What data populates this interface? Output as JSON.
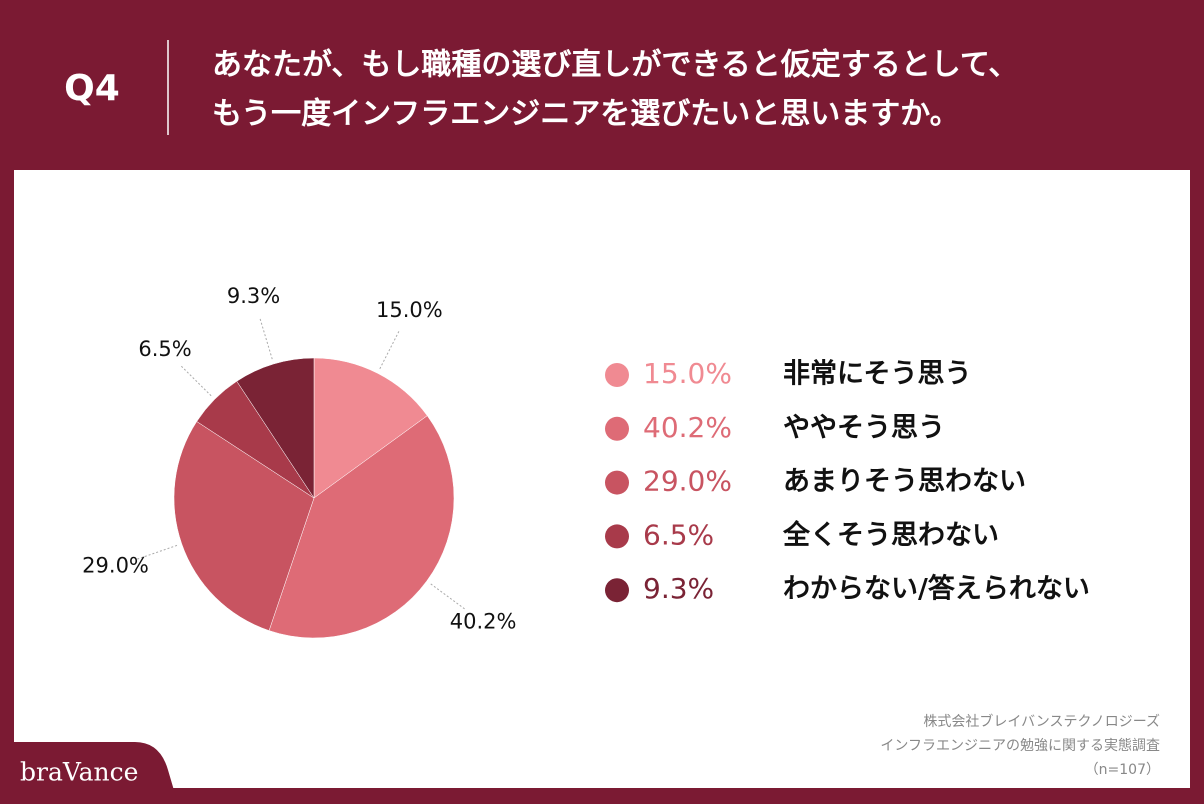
{
  "chart_data": {
    "type": "pie",
    "label": "Q4",
    "title": [
      "あなたが、もし職種の選び直しができると仮定するとして、",
      "もう一度インフラエンジニアを選びたいと思いますか。"
    ],
    "categories": [
      "非常にそう思う",
      "ややそう思う",
      "あまりそう思わない",
      "全くそう思わない",
      "わからない/答えられない"
    ],
    "values": [
      15.0,
      40.2,
      29.0,
      6.5,
      9.3
    ],
    "value_labels": [
      "15.0%",
      "40.2%",
      "29.0%",
      "6.5%",
      "9.3%"
    ],
    "colors": [
      "#f08a92",
      "#de6b76",
      "#c85461",
      "#a83a4a",
      "#7a2335"
    ],
    "source": [
      "株式会社ブレイバンステクノロジーズ",
      "インフラエンジニアの勉強に関する実態調査",
      "（n=107）"
    ],
    "brand": "braVance"
  }
}
